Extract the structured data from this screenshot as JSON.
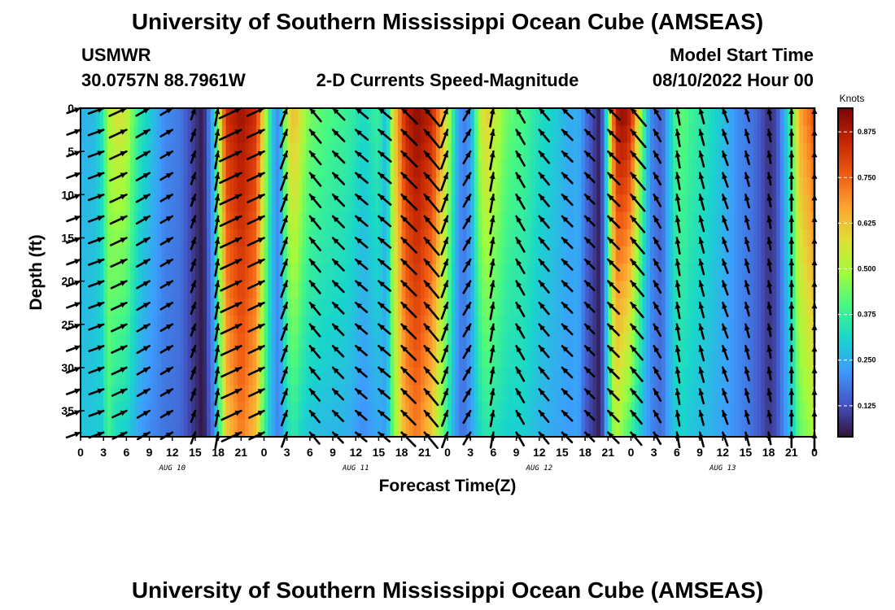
{
  "chart_data": {
    "type": "heatmap",
    "title": "University of Southern Mississippi Ocean Cube (AMSEAS)",
    "footer_title": "University of Southern Mississippi Ocean Cube (AMSEAS)",
    "station": "USMWR",
    "location": "30.0757N  88.7961W",
    "subtitle": "2-D Currents Speed-Magnitude",
    "model_start_label": "Model Start Time",
    "model_start_value": "08/10/2022 Hour 00",
    "xlabel": "Forecast Time(Z)",
    "ylabel": "Depth (ft)",
    "x_range_hours": [
      0,
      96
    ],
    "x_tick_step_hours": 3,
    "x_tick_labels": [
      "0",
      "3",
      "6",
      "9",
      "12",
      "15",
      "18",
      "21",
      "0",
      "3",
      "6",
      "9",
      "12",
      "15",
      "18",
      "21",
      "0",
      "3",
      "6",
      "9",
      "12",
      "15",
      "18",
      "21",
      "0",
      "3",
      "6",
      "9",
      "12",
      "15",
      "18",
      "21",
      "0"
    ],
    "date_labels": [
      {
        "hour": 12,
        "text": "AUG 10"
      },
      {
        "hour": 36,
        "text": "AUG 11"
      },
      {
        "hour": 60,
        "text": "AUG 12"
      },
      {
        "hour": 84,
        "text": "AUG 13"
      }
    ],
    "y_range_ft": [
      0,
      38
    ],
    "y_ticks": [
      "0",
      "5",
      "10",
      "15",
      "20",
      "25",
      "30",
      "35"
    ],
    "colorbar": {
      "label": "Knots",
      "ticks": [
        "0.125",
        "0.250",
        "0.375",
        "0.500",
        "0.625",
        "0.750",
        "0.875"
      ],
      "range": [
        0.04,
        0.94
      ]
    },
    "speed_profile": {
      "hours": [
        0,
        2,
        3,
        3.5,
        4.5,
        6,
        7,
        8,
        9,
        11,
        13,
        15,
        16,
        17.5,
        19,
        21,
        23,
        24,
        25,
        26,
        27,
        28,
        29,
        30,
        31,
        33,
        35,
        37,
        39,
        40,
        41,
        42.5,
        44,
        46,
        48,
        49,
        50,
        51,
        52,
        53,
        54,
        56,
        58,
        60,
        62,
        64,
        65,
        66,
        68,
        69,
        70,
        71,
        72,
        73,
        74.5,
        76,
        77,
        78,
        79,
        80,
        82,
        84,
        86,
        88,
        89,
        90,
        91,
        92,
        93,
        94,
        96
      ],
      "surface": [
        0.25,
        0.27,
        0.36,
        0.48,
        0.57,
        0.55,
        0.42,
        0.34,
        0.3,
        0.2,
        0.18,
        0.09,
        0.05,
        0.3,
        0.83,
        0.9,
        0.83,
        0.55,
        0.3,
        0.18,
        0.55,
        0.65,
        0.52,
        0.45,
        0.43,
        0.4,
        0.38,
        0.32,
        0.38,
        0.26,
        0.6,
        0.85,
        0.92,
        0.85,
        0.55,
        0.3,
        0.18,
        0.22,
        0.48,
        0.62,
        0.55,
        0.43,
        0.4,
        0.33,
        0.3,
        0.24,
        0.26,
        0.18,
        0.05,
        0.4,
        0.88,
        0.92,
        0.86,
        0.55,
        0.2,
        0.14,
        0.28,
        0.42,
        0.42,
        0.38,
        0.34,
        0.28,
        0.2,
        0.17,
        0.13,
        0.08,
        0.11,
        0.24,
        0.4,
        0.66,
        0.78
      ],
      "bottom": [
        0.28,
        0.29,
        0.3,
        0.4,
        0.32,
        0.3,
        0.26,
        0.22,
        0.2,
        0.17,
        0.16,
        0.08,
        0.04,
        0.2,
        0.6,
        0.72,
        0.62,
        0.38,
        0.25,
        0.18,
        0.32,
        0.35,
        0.3,
        0.28,
        0.27,
        0.26,
        0.25,
        0.2,
        0.24,
        0.22,
        0.46,
        0.66,
        0.72,
        0.6,
        0.35,
        0.22,
        0.16,
        0.22,
        0.3,
        0.35,
        0.33,
        0.3,
        0.3,
        0.26,
        0.24,
        0.22,
        0.24,
        0.14,
        0.05,
        0.3,
        0.52,
        0.44,
        0.38,
        0.3,
        0.2,
        0.16,
        0.24,
        0.3,
        0.3,
        0.28,
        0.26,
        0.23,
        0.2,
        0.16,
        0.13,
        0.09,
        0.12,
        0.2,
        0.28,
        0.42,
        0.5
      ]
    },
    "arrow_hours": [
      0,
      3,
      6,
      9,
      12,
      15,
      18,
      21,
      24,
      27,
      30,
      33,
      36,
      39,
      42,
      45,
      48,
      51,
      54,
      57,
      60,
      63,
      66,
      69,
      72,
      75,
      78,
      81,
      84,
      87,
      90,
      93,
      96
    ],
    "arrow_directions_deg": [
      -20,
      -20,
      -25,
      -30,
      -30,
      -70,
      -80,
      -25,
      -25,
      -70,
      -130,
      -135,
      -140,
      -140,
      -135,
      -130,
      -70,
      -60,
      -80,
      -120,
      -130,
      -135,
      -135,
      -135,
      -130,
      -120,
      -100,
      -105,
      -110,
      -105,
      -100,
      -90,
      -90
    ],
    "arrow_depths_ft": [
      0,
      2.5,
      5,
      7.5,
      10,
      12.5,
      15,
      17.5,
      20,
      22.5,
      25,
      27.5,
      30,
      32.5,
      35,
      37.5
    ]
  }
}
